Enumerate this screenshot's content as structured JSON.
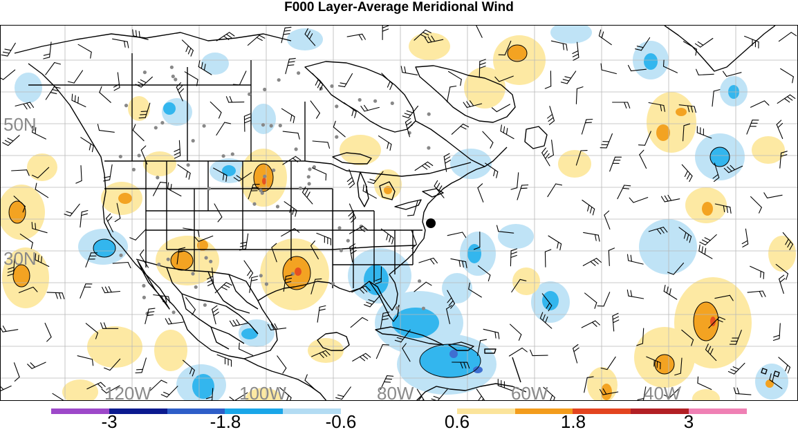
{
  "title": "F000 Layer-Average Meridional Wind",
  "map": {
    "lat_labels": [
      "50N",
      "30N"
    ],
    "lon_labels": [
      "120W",
      "100W",
      "80W",
      "60W",
      "40W"
    ],
    "colors": {
      "neg_light": "#bfe3f6",
      "neg_med": "#33b6ee",
      "neg_dark": "#3f6fd1",
      "neg_darkest": "#6b3fc9",
      "pos_light": "#fde9a3",
      "pos_med": "#f3a322",
      "pos_dark": "#e6501f",
      "coast": "#000000",
      "grid": "#b8b8b8",
      "station": "#888888",
      "barb": "#000000"
    }
  },
  "colorbar": {
    "colors": [
      "#9d48c9",
      "#0b1a8f",
      "#2e5ec8",
      "#1aa6e8",
      "#b3dcf3",
      "#ffffff",
      "#ffffff",
      "#fbe49b",
      "#f39c1c",
      "#e3441f",
      "#b21f24",
      "#ef80b4"
    ],
    "tick_labels": [
      "-3",
      "-1.8",
      "-0.6",
      "0.6",
      "1.8",
      "3"
    ]
  }
}
